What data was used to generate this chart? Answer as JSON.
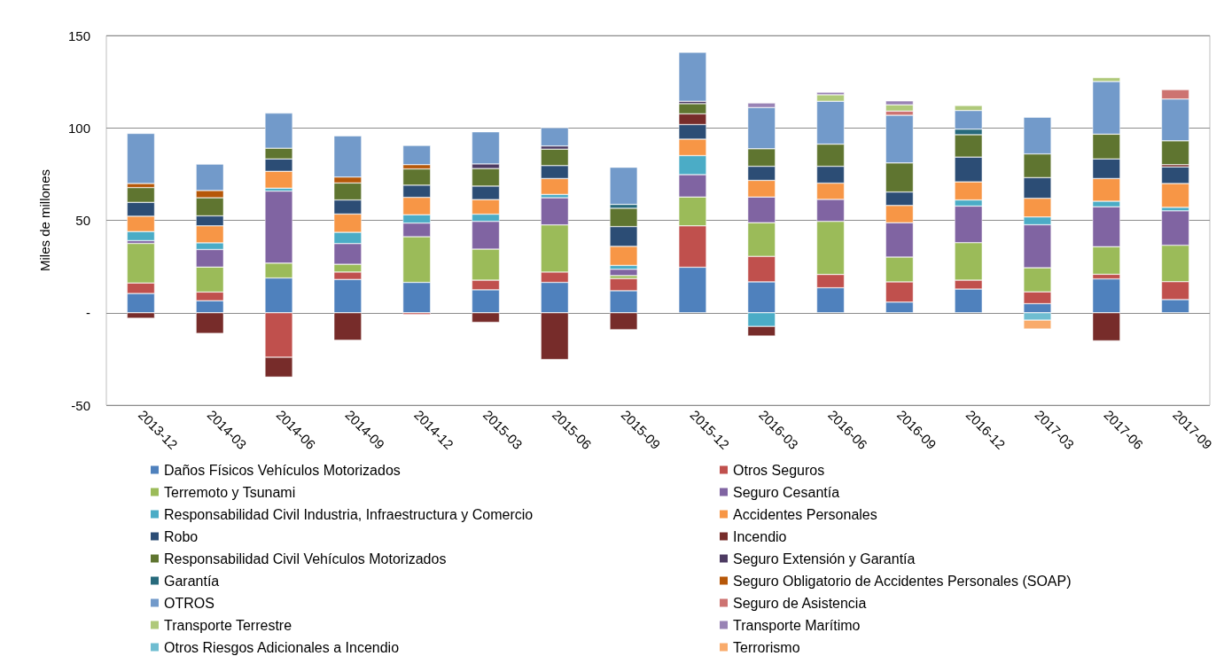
{
  "chart_data": {
    "type": "bar",
    "stacked": true,
    "ylabel": "Miles de millones",
    "categories": [
      "2013-12",
      "2014-03",
      "2014-06",
      "2014-09",
      "2014-12",
      "2015-03",
      "2015-06",
      "2015-09",
      "2015-12",
      "2016-03",
      "2016-06",
      "2016-09",
      "2016-12",
      "2017-03",
      "2017-06",
      "2017-09"
    ],
    "ylim": [
      -50,
      150
    ],
    "yticks": [
      -50,
      {
        "value": 0,
        "label": "-"
      },
      50,
      100,
      150
    ],
    "grid": "y",
    "legend": "bottom",
    "series": [
      {
        "name": "Daños Físicos Vehículos Motorizados",
        "color": "#4f81bd",
        "values": [
          10.4,
          6.5,
          18.8,
          18.0,
          16.4,
          12.4,
          16.4,
          11.9,
          24.6,
          16.7,
          13.5,
          5.7,
          12.8,
          4.9,
          18.3,
          7.1
        ]
      },
      {
        "name": "Otros Seguros",
        "color": "#c0504d",
        "values": [
          5.7,
          4.7,
          -24.1,
          4.0,
          -1,
          5.2,
          5.6,
          6.6,
          22.4,
          13.8,
          7.2,
          11.0,
          4.8,
          6.4,
          2.5,
          9.7
        ]
      },
      {
        "name": "Terremoto y Tsunami",
        "color": "#9bbb59",
        "values": [
          21.4,
          13.5,
          8.0,
          4.2,
          24.7,
          16.8,
          25.5,
          1.6,
          15.6,
          18.2,
          28.7,
          13.4,
          20.3,
          13.0,
          14.9,
          19.7
        ]
      },
      {
        "name": "Seguro Cesantía",
        "color": "#8064a2",
        "values": [
          1.5,
          9.5,
          39.0,
          11.2,
          7.4,
          15.0,
          14.7,
          3.4,
          12.1,
          13.9,
          11.9,
          18.6,
          19.8,
          23.3,
          21.6,
          18.6
        ]
      },
      {
        "name": "Responsabilidad Civil Industria, Infraestructura y Comercio",
        "color": "#4bacc6",
        "values": [
          4.9,
          3.6,
          1.6,
          6.1,
          4.5,
          3.9,
          1.8,
          2.1,
          10.3,
          -7.4,
          null,
          null,
          3.3,
          4.2,
          3.0,
          1.9
        ]
      },
      {
        "name": "Accidentes Personales",
        "color": "#f79646",
        "values": [
          8.3,
          9.2,
          9.1,
          9.9,
          9.4,
          7.9,
          8.6,
          10.3,
          8.9,
          9.0,
          8.8,
          9.3,
          9.8,
          10.1,
          12.3,
          12.9
        ]
      },
      {
        "name": "Robo",
        "color": "#2c4d75",
        "values": [
          7.5,
          5.4,
          6.7,
          7.6,
          6.6,
          7.3,
          7.0,
          10.7,
          7.9,
          7.6,
          9.1,
          7.3,
          13.4,
          11.2,
          10.6,
          9.0
        ]
      },
      {
        "name": "Incendio",
        "color": "#772c2a",
        "values": [
          -3,
          -11.2,
          -10.7,
          -14.9,
          null,
          -5.2,
          -25.3,
          -9.2,
          5.8,
          -5.2,
          null,
          null,
          null,
          null,
          -15.2,
          1.2
        ]
      },
      {
        "name": "Responsabilidad Civil Vehículos Motorizados",
        "color": "#5f7530",
        "values": [
          8,
          9.8,
          5.8,
          9.2,
          8.8,
          9.5,
          8.9,
          9.9,
          5.5,
          9.5,
          12.0,
          15.7,
          12.1,
          12.8,
          13.4,
          12.9
        ]
      },
      {
        "name": "Seguro Extensión y Garantía",
        "color": "#4d3b62",
        "values": [
          null,
          null,
          null,
          null,
          null,
          2.5,
          1.7,
          null,
          1.3,
          null,
          null,
          null,
          null,
          null,
          null,
          null
        ]
      },
      {
        "name": "Garantía",
        "color": "#276a7c",
        "values": [
          null,
          null,
          null,
          null,
          null,
          null,
          null,
          2.1,
          null,
          null,
          null,
          null,
          3.0,
          null,
          null,
          null
        ]
      },
      {
        "name": "Seguro Obligatorio de Accidentes Personales (SOAP)",
        "color": "#b65708",
        "values": [
          2.2,
          3.9,
          null,
          3.2,
          2.3,
          null,
          null,
          null,
          null,
          null,
          null,
          null,
          null,
          null,
          null,
          null
        ]
      },
      {
        "name": "OTROS",
        "color": "#729aca",
        "values": [
          27.1,
          14.3,
          19.0,
          22.3,
          10.4,
          17.4,
          9.9,
          20.1,
          26.5,
          22.3,
          23.2,
          25.8,
          10.1,
          19.9,
          28.5,
          22.6
        ]
      },
      {
        "name": "Seguro de Asistencia",
        "color": "#cd7371",
        "values": [
          null,
          null,
          null,
          null,
          null,
          null,
          null,
          null,
          null,
          null,
          null,
          2.3,
          null,
          null,
          null,
          5.1
        ]
      },
      {
        "name": "Transporte Terrestre",
        "color": "#afc97a",
        "values": [
          null,
          null,
          null,
          null,
          null,
          null,
          null,
          null,
          null,
          null,
          3.5,
          3.4,
          2.7,
          null,
          2.1,
          null
        ]
      },
      {
        "name": "Transporte Marítimo",
        "color": "#9983b5",
        "values": [
          null,
          null,
          null,
          null,
          null,
          null,
          null,
          null,
          null,
          2.5,
          1.4,
          2.1,
          null,
          null,
          null,
          null
        ]
      },
      {
        "name": "Otros Riesgos Adicionales a Incendio",
        "color": "#6fbdd1",
        "values": [
          null,
          null,
          null,
          null,
          null,
          null,
          null,
          null,
          null,
          null,
          null,
          null,
          null,
          -4.0,
          null,
          null
        ]
      },
      {
        "name": "Terrorismo",
        "color": "#f9ab6b",
        "values": [
          null,
          null,
          null,
          null,
          null,
          null,
          null,
          null,
          null,
          null,
          null,
          null,
          null,
          -4.8,
          null,
          null
        ]
      }
    ]
  }
}
